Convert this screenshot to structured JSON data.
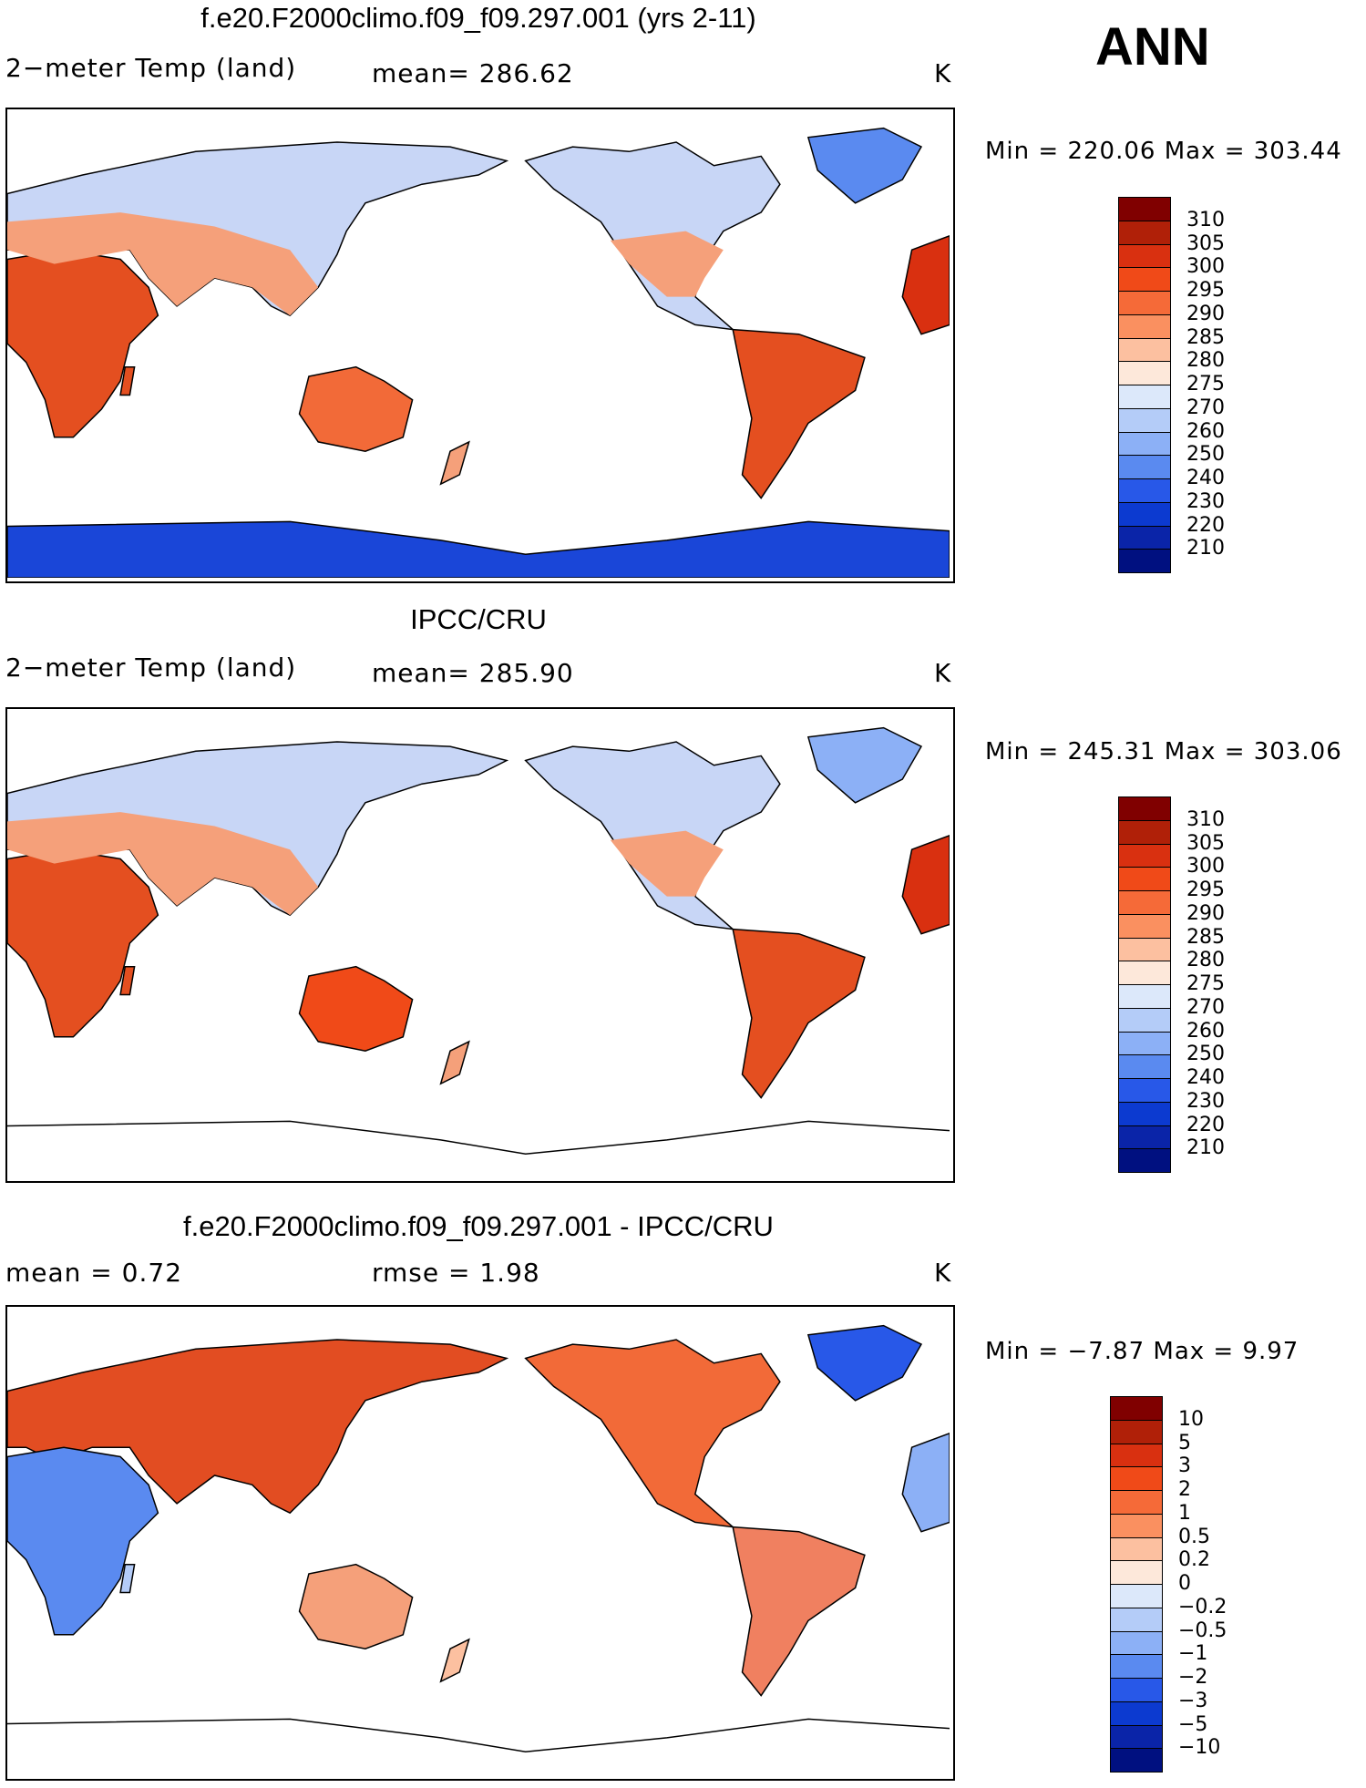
{
  "season": "ANN",
  "panels": [
    {
      "title": "f.e20.F2000climo.f09_f09.297.001 (yrs 2-11)",
      "left_label": "2−meter Temp (land)",
      "center_label": "mean=  286.62",
      "units": "K",
      "minmax": "Min = 220.06 Max = 303.44",
      "colorbar": {
        "colors": [
          "#800000",
          "#b02008",
          "#d93010",
          "#f04a18",
          "#f56a38",
          "#fa9060",
          "#fcc0a0",
          "#fde8da",
          "#dce8fa",
          "#b4ccf8",
          "#8cb0f6",
          "#5a8af0",
          "#2858e8",
          "#0c3ad0",
          "#0a24a8",
          "#001080"
        ],
        "labels": [
          "310",
          "305",
          "300",
          "295",
          "290",
          "285",
          "280",
          "275",
          "270",
          "260",
          "250",
          "240",
          "230",
          "220",
          "210"
        ]
      }
    },
    {
      "title": "IPCC/CRU",
      "left_label": "2−meter Temp (land)",
      "center_label": "mean=  285.90",
      "units": "K",
      "minmax": "Min = 245.31 Max = 303.06",
      "colorbar": {
        "colors": [
          "#800000",
          "#b02008",
          "#d93010",
          "#f04a18",
          "#f56a38",
          "#fa9060",
          "#fcc0a0",
          "#fde8da",
          "#dce8fa",
          "#b4ccf8",
          "#8cb0f6",
          "#5a8af0",
          "#2858e8",
          "#0c3ad0",
          "#0a24a8",
          "#001080"
        ],
        "labels": [
          "310",
          "305",
          "300",
          "295",
          "290",
          "285",
          "280",
          "275",
          "270",
          "260",
          "250",
          "240",
          "230",
          "220",
          "210"
        ]
      }
    },
    {
      "title": "f.e20.F2000climo.f09_f09.297.001 - IPCC/CRU",
      "left_label": "mean =    0.72",
      "center_label": "rmse =    1.98",
      "units": "K",
      "minmax": "Min = −7.87 Max =    9.97",
      "colorbar": {
        "colors": [
          "#800000",
          "#b02008",
          "#d93010",
          "#f04a18",
          "#f56a38",
          "#fa9060",
          "#fcc0a0",
          "#fde8da",
          "#dce8fa",
          "#b4ccf8",
          "#8cb0f6",
          "#5a8af0",
          "#2858e8",
          "#0c3ad0",
          "#0a24a8",
          "#001080"
        ],
        "labels": [
          "10",
          "5",
          "3",
          "2",
          "1",
          "0.5",
          "0.2",
          "0",
          "−0.2",
          "−0.5",
          "−1",
          "−2",
          "−3",
          "−5",
          "−10"
        ]
      }
    }
  ]
}
